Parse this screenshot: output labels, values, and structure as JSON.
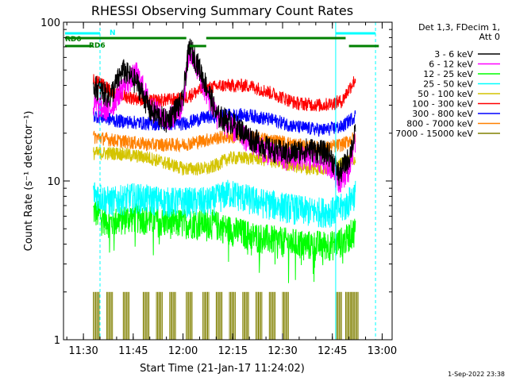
{
  "colors": {
    "c3_6": "#000000",
    "c6_12": "#ff00ff",
    "c12_25": "#00ff00",
    "c25_50": "#00ffff",
    "c50_100": "#d4c400",
    "c100_300": "#ff0000",
    "c300_800": "#0000ff",
    "c800_7000": "#ff8000",
    "c7000_15000": "#808000",
    "flag": "#008000",
    "att": "#00ffff"
  },
  "annotations": {
    "rd0": "RD0",
    "rd6": "RD6",
    "n": "N",
    "timestamp": "1-Sep-2022 23:38"
  },
  "chart_data": {
    "type": "line",
    "title": "RHESSI Observing Summary Count Rates",
    "xlabel": "Start Time (21-Jan-17 11:24:02)",
    "ylabel": "Count Rate (s⁻¹ detector⁻¹)",
    "y_scale": "log",
    "xlim": [
      "11:24",
      "13:03"
    ],
    "ylim": [
      1,
      100
    ],
    "x_ticks": [
      "11:30",
      "11:45",
      "12:00",
      "12:15",
      "12:30",
      "12:45",
      "13:00"
    ],
    "y_ticks": [
      "1",
      "10",
      "100"
    ],
    "legend_header": [
      "Det 1,3, FDecim 1,",
      "Att 0"
    ],
    "legend_position": "right",
    "data_interval": [
      "11:33",
      "12:52"
    ],
    "series": [
      {
        "name": "3 - 6 keV",
        "color": "#000000",
        "x": [
          "11:33",
          "11:38",
          "11:42",
          "11:46",
          "11:50",
          "11:55",
          "12:00",
          "12:02",
          "12:06",
          "12:10",
          "12:14",
          "12:20",
          "12:26",
          "12:32",
          "12:38",
          "12:44",
          "12:47",
          "12:50",
          "12:52"
        ],
        "y": [
          40,
          34,
          50,
          42,
          28,
          24,
          32,
          70,
          45,
          26,
          24,
          19,
          16,
          15,
          16,
          15,
          11,
          14,
          20
        ]
      },
      {
        "name": "6 - 12 keV",
        "color": "#ff00ff",
        "x": [
          "11:33",
          "11:38",
          "11:42",
          "11:46",
          "11:50",
          "11:55",
          "12:00",
          "12:02",
          "12:06",
          "12:10",
          "12:14",
          "12:20",
          "12:26",
          "12:32",
          "12:38",
          "12:44",
          "12:47",
          "12:50",
          "12:52"
        ],
        "y": [
          30,
          28,
          40,
          48,
          30,
          24,
          30,
          65,
          40,
          26,
          22,
          18,
          15,
          14,
          14,
          13,
          10,
          12,
          18
        ]
      },
      {
        "name": "12 - 25 keV",
        "color": "#00ff00",
        "x": [
          "11:33",
          "11:38",
          "11:45",
          "11:55",
          "12:00",
          "12:08",
          "12:14",
          "12:22",
          "12:30",
          "12:38",
          "12:45",
          "12:49",
          "12:52"
        ],
        "y": [
          6.5,
          5.5,
          6,
          5.5,
          5.5,
          5.5,
          5.0,
          4.5,
          4.2,
          4.0,
          4.0,
          4.3,
          5.0
        ]
      },
      {
        "name": "25 - 50 keV",
        "color": "#00ffff",
        "x": [
          "11:33",
          "11:38",
          "11:45",
          "11:55",
          "12:00",
          "12:08",
          "12:14",
          "12:22",
          "12:30",
          "12:38",
          "12:45",
          "12:49",
          "12:52"
        ],
        "y": [
          8.5,
          7.5,
          8,
          7.5,
          7.5,
          7.5,
          8.5,
          7.5,
          7.0,
          6.5,
          6.5,
          7.0,
          8.5
        ]
      },
      {
        "name": "50 - 100 keV",
        "color": "#d4c400",
        "x": [
          "11:33",
          "11:40",
          "11:50",
          "12:00",
          "12:08",
          "12:14",
          "12:22",
          "12:30",
          "12:38",
          "12:45",
          "12:52"
        ],
        "y": [
          15,
          15,
          14,
          12,
          12,
          14,
          14,
          13,
          12,
          12,
          14
        ]
      },
      {
        "name": "100 - 300 keV",
        "color": "#ff0000",
        "x": [
          "11:33",
          "11:40",
          "11:50",
          "12:00",
          "12:06",
          "12:12",
          "12:20",
          "12:28",
          "12:34",
          "12:42",
          "12:48",
          "12:52"
        ],
        "y": [
          44,
          35,
          32,
          33,
          38,
          40,
          40,
          35,
          31,
          30,
          32,
          44
        ]
      },
      {
        "name": "300 - 800 keV",
        "color": "#0000ff",
        "x": [
          "11:33",
          "11:40",
          "11:50",
          "12:00",
          "12:06",
          "12:12",
          "12:20",
          "12:28",
          "12:34",
          "12:42",
          "12:48",
          "12:52"
        ],
        "y": [
          26,
          24,
          23,
          23,
          25,
          26,
          26,
          24,
          22,
          21,
          22,
          26
        ]
      },
      {
        "name": "800 - 7000 keV",
        "color": "#ff8000",
        "x": [
          "11:33",
          "11:40",
          "11:50",
          "12:00",
          "12:06",
          "12:12",
          "12:20",
          "12:28",
          "12:34",
          "12:42",
          "12:48",
          "12:52"
        ],
        "y": [
          19,
          18,
          17,
          17,
          18,
          19,
          19,
          18,
          17,
          16,
          17,
          19
        ]
      },
      {
        "name": "7000 - 15000 keV",
        "color": "#808000",
        "x": [
          "11:33",
          "11:37",
          "11:42",
          "11:48",
          "11:52",
          "11:56",
          "12:01",
          "12:06",
          "12:10",
          "12:14",
          "12:18",
          "12:22",
          "12:26",
          "12:30",
          "12:46",
          "12:49",
          "12:51"
        ],
        "y": [
          2,
          2,
          2,
          2,
          2,
          2,
          2,
          2,
          2,
          2,
          2,
          2,
          2,
          2,
          2,
          2,
          2
        ]
      }
    ]
  }
}
